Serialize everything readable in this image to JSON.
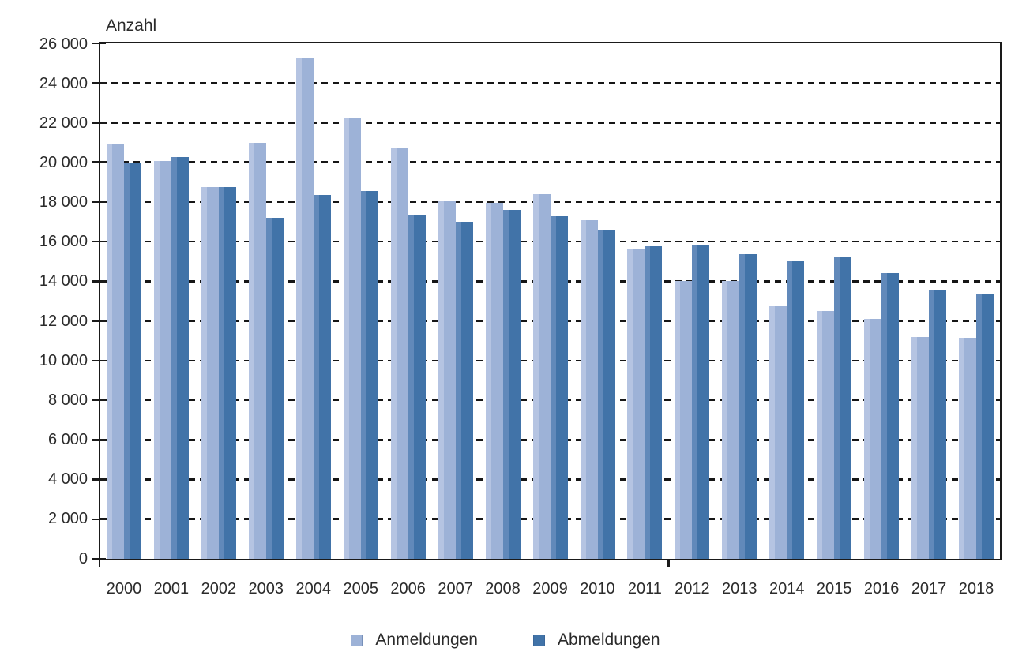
{
  "chart_data": {
    "type": "bar",
    "title": "",
    "ylabel": "Anzahl",
    "xlabel": "",
    "grid": "dashed-horizontal",
    "legend_position": "bottom-center",
    "categories": [
      "2000",
      "2001",
      "2002",
      "2003",
      "2004",
      "2005",
      "2006",
      "2007",
      "2008",
      "2009",
      "2010",
      "2011",
      "2012",
      "2013",
      "2014",
      "2015",
      "2016",
      "2017",
      "2018"
    ],
    "series": [
      {
        "name": "Anmeldungen",
        "color": "#9db2d7",
        "highlight": "#b5c4e2",
        "values": [
          20900,
          20050,
          18750,
          21000,
          25250,
          22200,
          20750,
          18050,
          17950,
          18400,
          17100,
          15650,
          14000,
          14000,
          12750,
          12500,
          12100,
          11200,
          11150
        ]
      },
      {
        "name": "Abmeldungen",
        "color": "#4173a8",
        "highlight": "#6189ba",
        "values": [
          20000,
          20250,
          18750,
          17200,
          18350,
          18550,
          17350,
          17000,
          17600,
          17300,
          16600,
          15750,
          15850,
          15350,
          15000,
          15250,
          14400,
          13550,
          13350
        ]
      }
    ],
    "y_axis": {
      "min": 0,
      "max": 26000,
      "step": 2000,
      "tick_labels": [
        "0",
        "2 000",
        "4 000",
        "6 000",
        "8 000",
        "10 000",
        "12 000",
        "14 000",
        "16 000",
        "18 000",
        "20 000",
        "22 000",
        "24 000",
        "26 000"
      ]
    },
    "x_axis": {
      "boundary_tick_between": [
        "2011",
        "2012"
      ]
    }
  }
}
